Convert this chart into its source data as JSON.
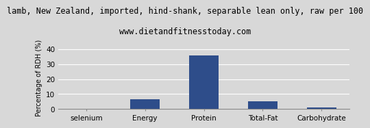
{
  "title": "lamb, New Zealand, imported, hind-shank, separable lean only, raw per 100",
  "subtitle": "www.dietandfitnesstoday.com",
  "categories": [
    "selenium",
    "Energy",
    "Protein",
    "Total-Fat",
    "Carbohydrate"
  ],
  "values": [
    0.3,
    6.5,
    36.0,
    5.3,
    1.2
  ],
  "bar_color": "#2e4d8a",
  "ylabel": "Percentage of RDH (%)",
  "ylim": [
    0,
    42
  ],
  "yticks": [
    0,
    10,
    20,
    30,
    40
  ],
  "background_color": "#d8d8d8",
  "grid_color": "#ffffff",
  "title_fontsize": 8.5,
  "subtitle_fontsize": 8.5,
  "label_fontsize": 7,
  "tick_fontsize": 7.5
}
